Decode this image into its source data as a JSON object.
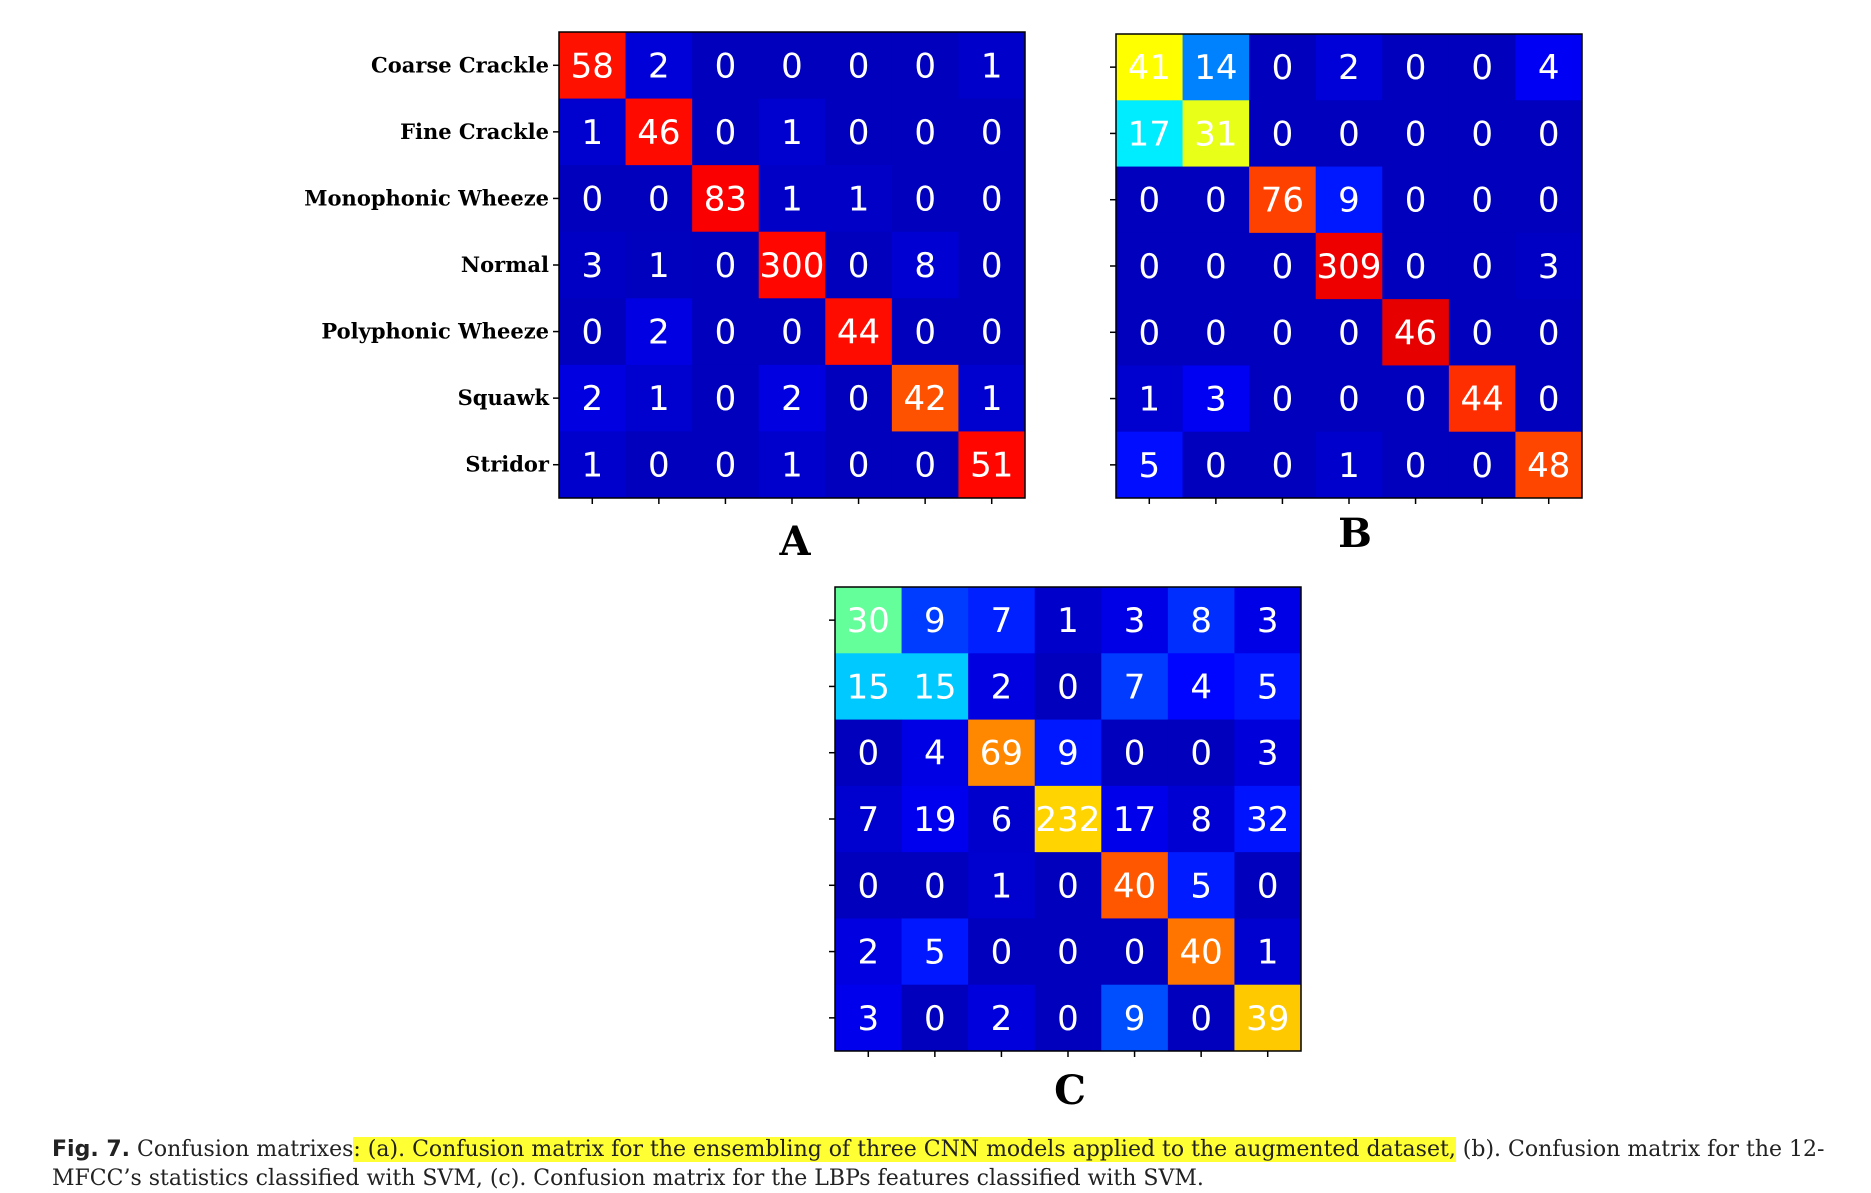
{
  "chart_data": [
    {
      "type": "heatmap",
      "panel": "A",
      "colormap": "jet",
      "row_labels": [
        "Coarse Crackle",
        "Fine Crackle",
        "Monophonic Wheeze",
        "Normal",
        "Polyphonic Wheeze",
        "Squawk",
        "Stridor"
      ],
      "matrix": [
        [
          58,
          2,
          0,
          0,
          0,
          0,
          1
        ],
        [
          1,
          46,
          0,
          1,
          0,
          0,
          0
        ],
        [
          0,
          0,
          83,
          1,
          1,
          0,
          0
        ],
        [
          3,
          1,
          0,
          300,
          0,
          8,
          0
        ],
        [
          0,
          2,
          0,
          0,
          44,
          0,
          0
        ],
        [
          2,
          1,
          0,
          2,
          0,
          42,
          1
        ],
        [
          1,
          0,
          0,
          1,
          0,
          0,
          51
        ]
      ]
    },
    {
      "type": "heatmap",
      "panel": "B",
      "colormap": "jet",
      "matrix": [
        [
          41,
          14,
          0,
          2,
          0,
          0,
          4
        ],
        [
          17,
          31,
          0,
          0,
          0,
          0,
          0
        ],
        [
          0,
          0,
          76,
          9,
          0,
          0,
          0
        ],
        [
          0,
          0,
          0,
          309,
          0,
          0,
          3
        ],
        [
          0,
          0,
          0,
          0,
          46,
          0,
          0
        ],
        [
          1,
          3,
          0,
          0,
          0,
          44,
          0
        ],
        [
          5,
          0,
          0,
          1,
          0,
          0,
          48
        ]
      ]
    },
    {
      "type": "heatmap",
      "panel": "C",
      "colormap": "jet",
      "matrix": [
        [
          30,
          9,
          7,
          1,
          3,
          8,
          3
        ],
        [
          15,
          15,
          2,
          0,
          7,
          4,
          5
        ],
        [
          0,
          4,
          69,
          9,
          0,
          0,
          3
        ],
        [
          7,
          19,
          6,
          232,
          17,
          8,
          32
        ],
        [
          0,
          0,
          1,
          0,
          40,
          5,
          0
        ],
        [
          2,
          5,
          0,
          0,
          0,
          40,
          1
        ],
        [
          3,
          0,
          2,
          0,
          9,
          0,
          39
        ]
      ]
    }
  ],
  "caption": {
    "label": "Fig. 7.",
    "lead": "Confusion matrixes",
    "highlighted": ": (a). Confusion matrix for the ensembling of three CNN models applied to the augmented dataset,",
    "rest": " (b). Confusion matrix for the 12-MFCC’s statistics classified with SVM, (c). Confusion matrix for the LBPs features classified with SVM."
  }
}
